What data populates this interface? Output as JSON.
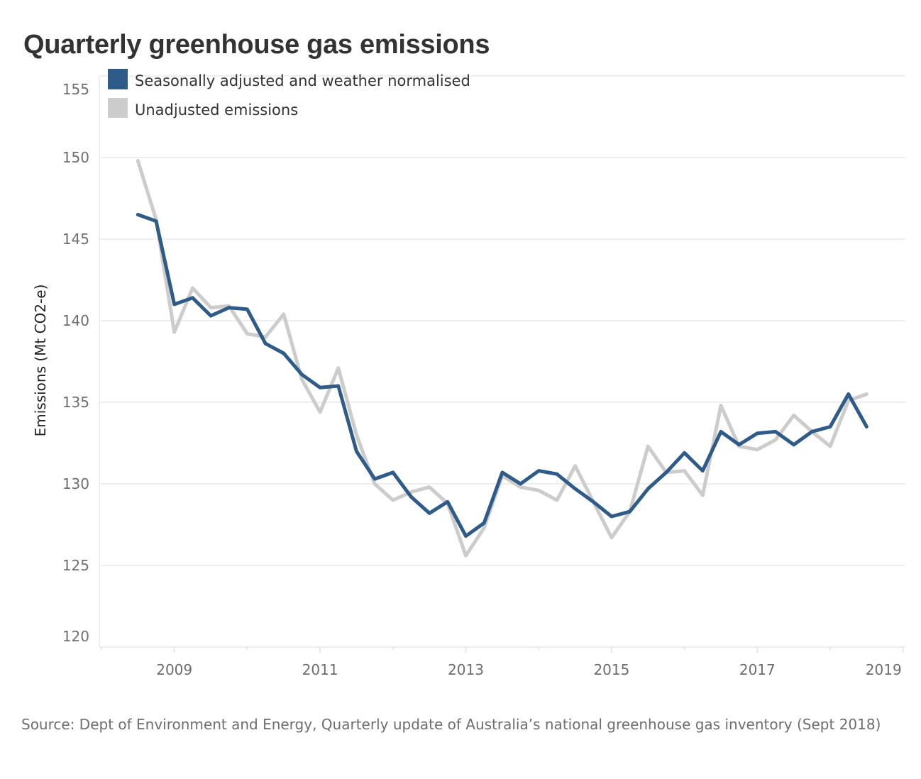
{
  "chart_data": {
    "type": "line",
    "title": "Quarterly greenhouse gas emissions",
    "xlabel": "",
    "ylabel": "Emissions (Mt CO2-e)",
    "ylim": [
      120,
      155
    ],
    "xlim": [
      2008,
      2019
    ],
    "yticks": [
      155,
      150,
      145,
      140,
      135,
      130,
      125,
      120
    ],
    "xticks": [
      2009,
      2011,
      2013,
      2015,
      2017,
      2019
    ],
    "grid": true,
    "legend_position": "top-left",
    "x": [
      2008.5,
      2008.75,
      2009.0,
      2009.25,
      2009.5,
      2009.75,
      2010.0,
      2010.25,
      2010.5,
      2010.75,
      2011.0,
      2011.25,
      2011.5,
      2011.75,
      2012.0,
      2012.25,
      2012.5,
      2012.75,
      2013.0,
      2013.25,
      2013.5,
      2013.75,
      2014.0,
      2014.25,
      2014.5,
      2014.75,
      2015.0,
      2015.25,
      2015.5,
      2015.75,
      2016.0,
      2016.25,
      2016.5,
      2016.75,
      2017.0,
      2017.25,
      2017.5,
      2017.75,
      2018.0,
      2018.25,
      2018.5
    ],
    "series": [
      {
        "name": "Unadjusted emissions",
        "color": "#cccccc",
        "values": [
          149.8,
          146.2,
          139.3,
          142.0,
          140.8,
          140.9,
          139.2,
          139.0,
          140.4,
          136.4,
          134.4,
          137.1,
          133.0,
          130.0,
          129.0,
          129.5,
          129.8,
          128.8,
          125.6,
          127.3,
          130.5,
          129.8,
          129.6,
          129.0,
          131.1,
          128.9,
          126.7,
          128.3,
          132.3,
          130.7,
          130.8,
          129.3,
          134.8,
          132.3,
          132.1,
          132.7,
          134.2,
          133.2,
          132.3,
          135.1,
          135.5
        ]
      },
      {
        "name": "Seasonally adjusted and weather normalised",
        "color": "#2f5b89",
        "values": [
          146.5,
          146.1,
          141.0,
          141.4,
          140.3,
          140.8,
          140.7,
          138.6,
          138.0,
          136.7,
          135.9,
          136.0,
          132.0,
          130.3,
          130.7,
          129.2,
          128.2,
          128.9,
          126.8,
          127.6,
          130.7,
          130.0,
          130.8,
          130.6,
          129.7,
          128.9,
          128.0,
          128.3,
          129.7,
          130.7,
          131.9,
          130.8,
          133.2,
          132.4,
          133.1,
          133.2,
          132.4,
          133.2,
          133.5,
          135.5,
          133.5
        ]
      }
    ],
    "legend": [
      {
        "label": "Seasonally adjusted and weather normalised",
        "color": "#2f5b89"
      },
      {
        "label": "Unadjusted emissions",
        "color": "#cccccc"
      }
    ],
    "source": "Source: Dept of Environment and Energy, Quarterly update of Australia’s national greenhouse gas inventory (Sept 2018)"
  }
}
